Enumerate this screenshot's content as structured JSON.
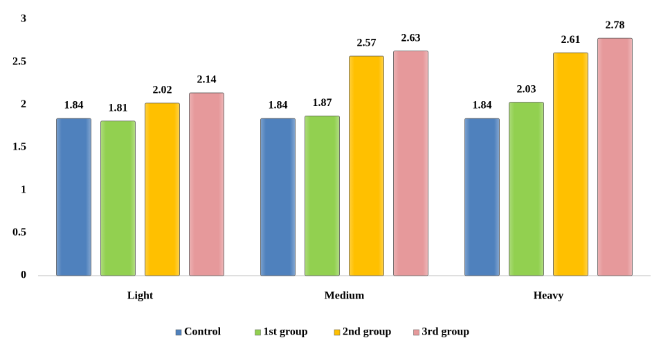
{
  "chart_data": {
    "type": "bar",
    "categories": [
      "Light",
      "Medium",
      "Heavy"
    ],
    "series": [
      {
        "name": "Control",
        "color": "#4f81bd",
        "values": [
          1.84,
          1.84,
          1.84
        ]
      },
      {
        "name": "1st group",
        "color": "#92d050",
        "values": [
          1.81,
          1.87,
          2.03
        ]
      },
      {
        "name": "2nd group",
        "color": "#ffc000",
        "values": [
          2.02,
          2.57,
          2.61
        ]
      },
      {
        "name": "3rd group",
        "color": "#e6999b",
        "values": [
          2.14,
          2.63,
          2.78
        ]
      }
    ],
    "ylim": [
      0,
      3
    ],
    "yticks": [
      0,
      0.5,
      1,
      1.5,
      2,
      2.5,
      3
    ],
    "grid": false,
    "legend": "bottom"
  }
}
